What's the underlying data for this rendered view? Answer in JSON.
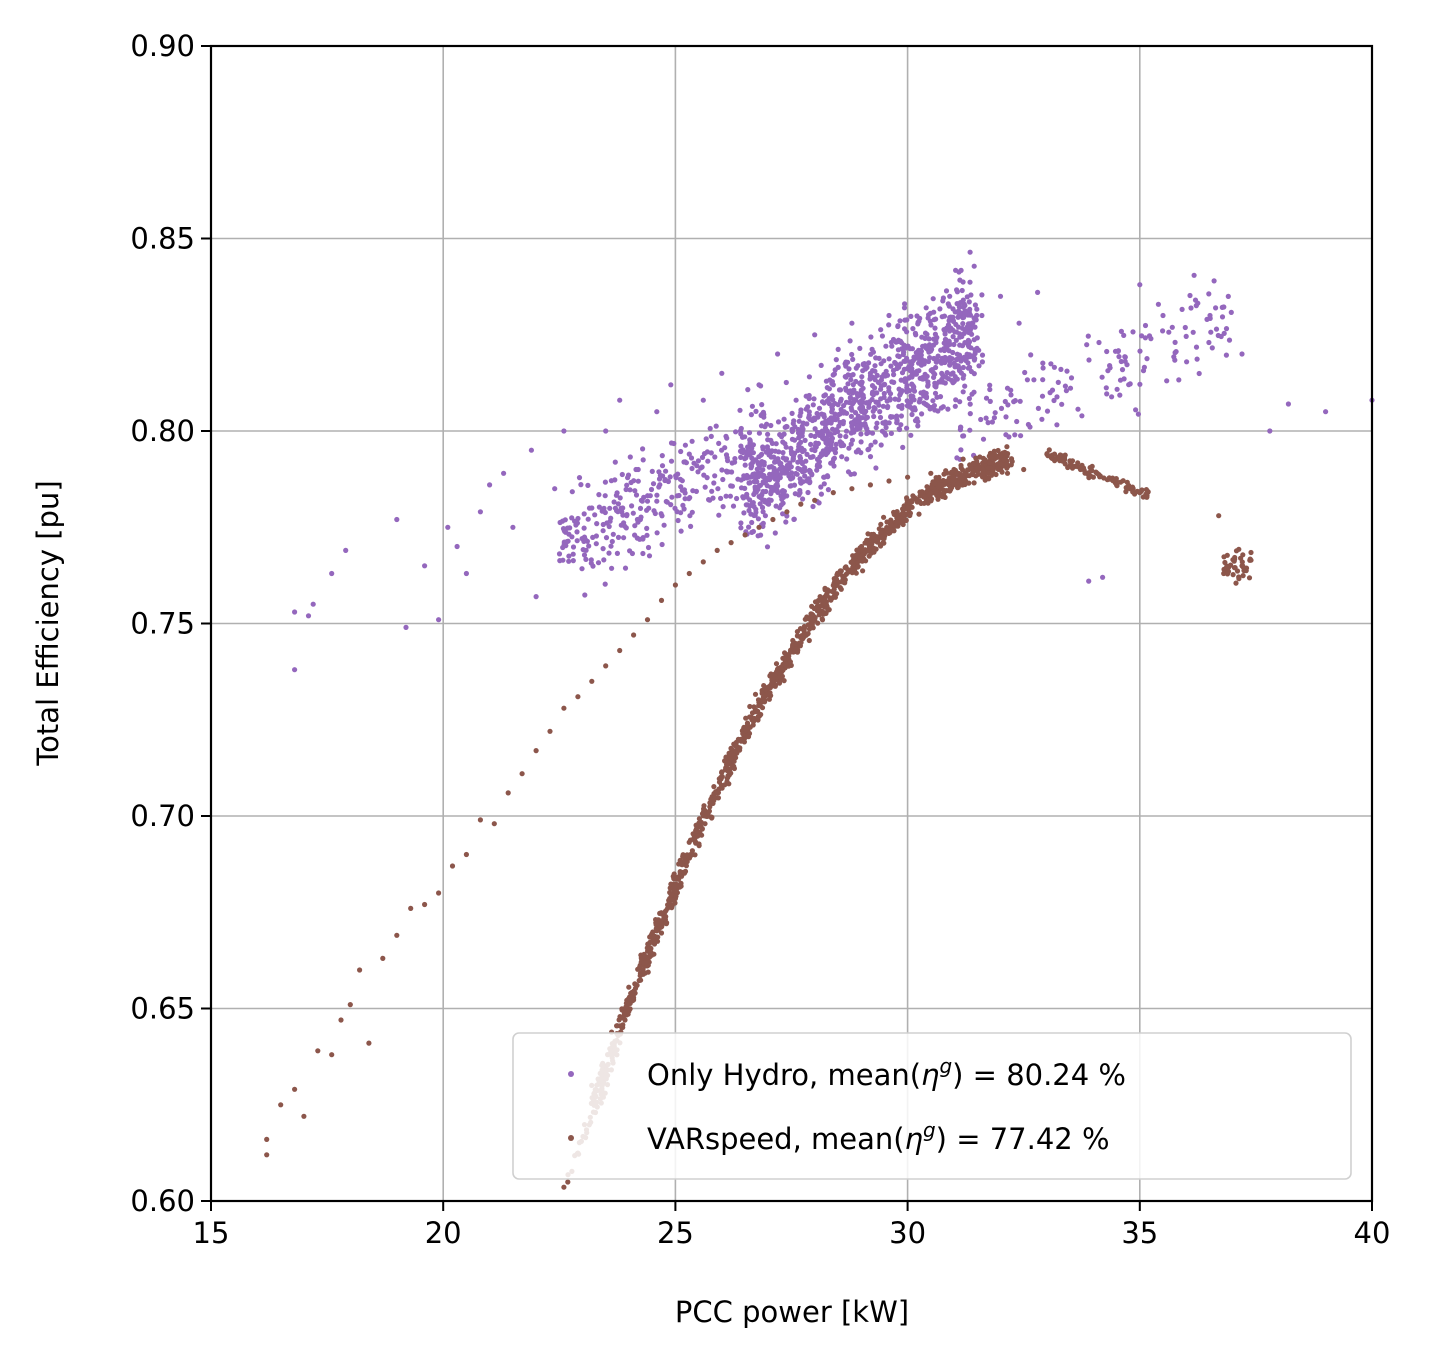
{
  "chart_data": {
    "type": "scatter",
    "title": "",
    "xlabel": "PCC power [kW]",
    "ylabel": "Total Efficiency [pu]",
    "xlim": [
      15,
      40
    ],
    "ylim": [
      0.6,
      0.9
    ],
    "xticks": [
      15,
      20,
      25,
      30,
      35,
      40
    ],
    "xtick_labels": [
      "15",
      "20",
      "25",
      "30",
      "35",
      "40"
    ],
    "yticks": [
      0.6,
      0.65,
      0.7,
      0.75,
      0.8,
      0.85,
      0.9
    ],
    "ytick_labels": [
      "0.60",
      "0.65",
      "0.70",
      "0.75",
      "0.80",
      "0.85",
      "0.90"
    ],
    "grid": true,
    "legend_position": "bottom-right",
    "series": [
      {
        "name": "Only Hydro",
        "label_prefix": "Only Hydro, mean(",
        "label_symbol": "η",
        "label_sup": "g",
        "label_suffix": ") = 80.24 %",
        "color": "#9467bd",
        "approx_points": [
          [
            16.8,
            0.738
          ],
          [
            16.8,
            0.753
          ],
          [
            17.1,
            0.752
          ],
          [
            17.2,
            0.755
          ],
          [
            17.6,
            0.763
          ],
          [
            17.9,
            0.769
          ],
          [
            19.0,
            0.777
          ],
          [
            19.2,
            0.749
          ],
          [
            19.6,
            0.765
          ],
          [
            19.9,
            0.751
          ],
          [
            20.1,
            0.775
          ],
          [
            20.3,
            0.77
          ],
          [
            20.5,
            0.763
          ],
          [
            20.8,
            0.779
          ],
          [
            21.0,
            0.786
          ],
          [
            21.3,
            0.789
          ],
          [
            21.5,
            0.775
          ],
          [
            21.9,
            0.795
          ],
          [
            22.0,
            0.757
          ],
          [
            22.4,
            0.785
          ],
          [
            22.6,
            0.8
          ],
          [
            22.8,
            0.768
          ],
          [
            23.2,
            0.78
          ],
          [
            23.5,
            0.8
          ],
          [
            23.8,
            0.808
          ],
          [
            24.2,
            0.79
          ],
          [
            24.6,
            0.805
          ],
          [
            24.9,
            0.812
          ],
          [
            25.3,
            0.794
          ],
          [
            25.6,
            0.808
          ],
          [
            26.0,
            0.815
          ],
          [
            26.4,
            0.8
          ],
          [
            26.8,
            0.812
          ],
          [
            27.2,
            0.82
          ],
          [
            27.6,
            0.808
          ],
          [
            28.0,
            0.825
          ],
          [
            28.4,
            0.812
          ],
          [
            28.8,
            0.828
          ],
          [
            29.2,
            0.815
          ],
          [
            29.6,
            0.83
          ],
          [
            30.0,
            0.822
          ],
          [
            30.4,
            0.832
          ],
          [
            30.8,
            0.826
          ],
          [
            31.2,
            0.834
          ],
          [
            31.6,
            0.83
          ],
          [
            32.0,
            0.835
          ],
          [
            32.4,
            0.828
          ],
          [
            32.8,
            0.836
          ],
          [
            33.3,
            0.816
          ],
          [
            33.9,
            0.761
          ],
          [
            34.2,
            0.762
          ],
          [
            35.0,
            0.838
          ],
          [
            35.5,
            0.83
          ],
          [
            36.2,
            0.834
          ],
          [
            36.6,
            0.839
          ],
          [
            37.2,
            0.82
          ],
          [
            37.8,
            0.8
          ],
          [
            38.2,
            0.807
          ],
          [
            39.0,
            0.805
          ],
          [
            40.0,
            0.808
          ]
        ]
      },
      {
        "name": "VARspeed",
        "label_prefix": "VARspeed, mean(",
        "label_symbol": "η",
        "label_sup": "g",
        "label_suffix": ") = 77.42 %",
        "color": "#8c564b",
        "approx_points": [
          [
            16.2,
            0.612
          ],
          [
            16.2,
            0.616
          ],
          [
            16.5,
            0.625
          ],
          [
            16.8,
            0.629
          ],
          [
            17.0,
            0.622
          ],
          [
            17.3,
            0.639
          ],
          [
            17.6,
            0.638
          ],
          [
            17.8,
            0.647
          ],
          [
            18.0,
            0.651
          ],
          [
            18.2,
            0.66
          ],
          [
            18.4,
            0.641
          ],
          [
            18.7,
            0.663
          ],
          [
            19.0,
            0.669
          ],
          [
            19.3,
            0.676
          ],
          [
            19.6,
            0.677
          ],
          [
            19.9,
            0.68
          ],
          [
            20.2,
            0.687
          ],
          [
            20.5,
            0.69
          ],
          [
            20.8,
            0.699
          ],
          [
            21.1,
            0.698
          ],
          [
            21.4,
            0.706
          ],
          [
            21.7,
            0.711
          ],
          [
            22.0,
            0.717
          ],
          [
            22.3,
            0.722
          ],
          [
            22.6,
            0.728
          ],
          [
            22.9,
            0.731
          ],
          [
            23.2,
            0.735
          ],
          [
            23.5,
            0.739
          ],
          [
            23.8,
            0.743
          ],
          [
            24.1,
            0.747
          ],
          [
            24.4,
            0.751
          ],
          [
            24.7,
            0.756
          ],
          [
            25.0,
            0.76
          ],
          [
            25.3,
            0.763
          ],
          [
            25.6,
            0.766
          ],
          [
            25.9,
            0.769
          ],
          [
            26.2,
            0.771
          ],
          [
            26.5,
            0.773
          ],
          [
            26.8,
            0.775
          ],
          [
            27.1,
            0.777
          ],
          [
            27.4,
            0.779
          ],
          [
            27.7,
            0.781
          ],
          [
            28.0,
            0.782
          ],
          [
            28.4,
            0.784
          ],
          [
            28.8,
            0.785
          ],
          [
            29.2,
            0.786
          ],
          [
            29.6,
            0.787
          ],
          [
            30.0,
            0.788
          ],
          [
            30.5,
            0.789
          ],
          [
            31.0,
            0.79
          ],
          [
            31.5,
            0.791
          ],
          [
            32.0,
            0.79
          ],
          [
            32.5,
            0.79
          ],
          [
            33.0,
            0.794
          ],
          [
            33.5,
            0.791
          ],
          [
            34.0,
            0.788
          ],
          [
            34.5,
            0.786
          ],
          [
            35.0,
            0.784
          ],
          [
            36.7,
            0.778
          ],
          [
            37.2,
            0.765
          ]
        ]
      }
    ]
  }
}
